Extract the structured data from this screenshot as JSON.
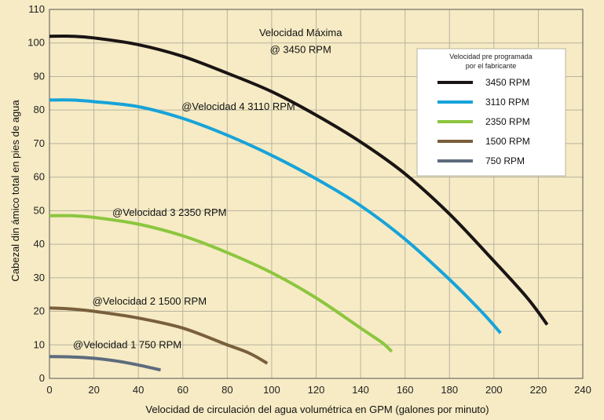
{
  "colors": {
    "background": "#f6ebc4",
    "grid": "#b9b3a0",
    "legend_bg": "#ffffff"
  },
  "chart_data": {
    "type": "line",
    "title": "",
    "xlabel": "Velocidad de circulación del agua volumétrica en GPM (galones por minuto)",
    "ylabel": "Cabezal din ámico total en pies de agua",
    "xlim": [
      0,
      240
    ],
    "ylim": [
      0,
      110
    ],
    "x_ticks": [
      0,
      20,
      40,
      60,
      80,
      100,
      120,
      140,
      160,
      180,
      200,
      220,
      240
    ],
    "y_ticks": [
      0,
      10,
      20,
      30,
      40,
      50,
      60,
      70,
      80,
      90,
      100,
      110
    ],
    "grid": true,
    "legend": {
      "placement": "top-right",
      "title_lines": [
        "Velocidad pre programada",
        "por el fabricante"
      ]
    },
    "series": [
      {
        "name": "3450 RPM",
        "color": "#1a1414",
        "x": [
          0,
          10,
          20,
          40,
          60,
          80,
          100,
          120,
          140,
          160,
          180,
          200,
          215,
          224
        ],
        "y": [
          102,
          102,
          101.5,
          99.5,
          96,
          91,
          85.5,
          78.5,
          70.5,
          61,
          49,
          35,
          24,
          16
        ]
      },
      {
        "name": "3110 RPM",
        "color": "#17a3d9",
        "x": [
          0,
          10,
          20,
          40,
          60,
          80,
          100,
          120,
          140,
          160,
          180,
          195,
          203
        ],
        "y": [
          83,
          83,
          82.5,
          81,
          77.5,
          72.5,
          66.5,
          59.5,
          51.5,
          41.5,
          29.5,
          19.5,
          13.5
        ]
      },
      {
        "name": "2350 RPM",
        "color": "#8cc63f",
        "x": [
          0,
          10,
          20,
          40,
          60,
          80,
          100,
          120,
          140,
          150,
          154
        ],
        "y": [
          48.5,
          48.5,
          48,
          46,
          42.5,
          37.5,
          31.5,
          24,
          15,
          10.5,
          8
        ]
      },
      {
        "name": "1500 RPM",
        "color": "#7a5f3c",
        "x": [
          0,
          10,
          20,
          40,
          60,
          80,
          90,
          98
        ],
        "y": [
          21,
          20.7,
          20,
          18,
          15,
          10,
          7.5,
          4.5
        ]
      },
      {
        "name": "750 RPM",
        "color": "#5d6b7d",
        "x": [
          0,
          10,
          20,
          30,
          40,
          50
        ],
        "y": [
          6.5,
          6.4,
          6,
          5.2,
          4,
          2.5
        ]
      }
    ],
    "annotations": [
      {
        "text": "Velocidad Máxima",
        "x": 113,
        "y": 102
      },
      {
        "text": "@ 3450 RPM",
        "x": 113,
        "y": 97
      },
      {
        "text": "@Velocidad 4 3110 RPM",
        "x": 85,
        "y": 80
      },
      {
        "text": "@Velocidad 3 2350 RPM",
        "x": 54,
        "y": 48.5
      },
      {
        "text": "@Velocidad 2 1500 RPM",
        "x": 45,
        "y": 22
      },
      {
        "text": "@Velocidad 1 750 RPM",
        "x": 35,
        "y": 9
      }
    ]
  }
}
